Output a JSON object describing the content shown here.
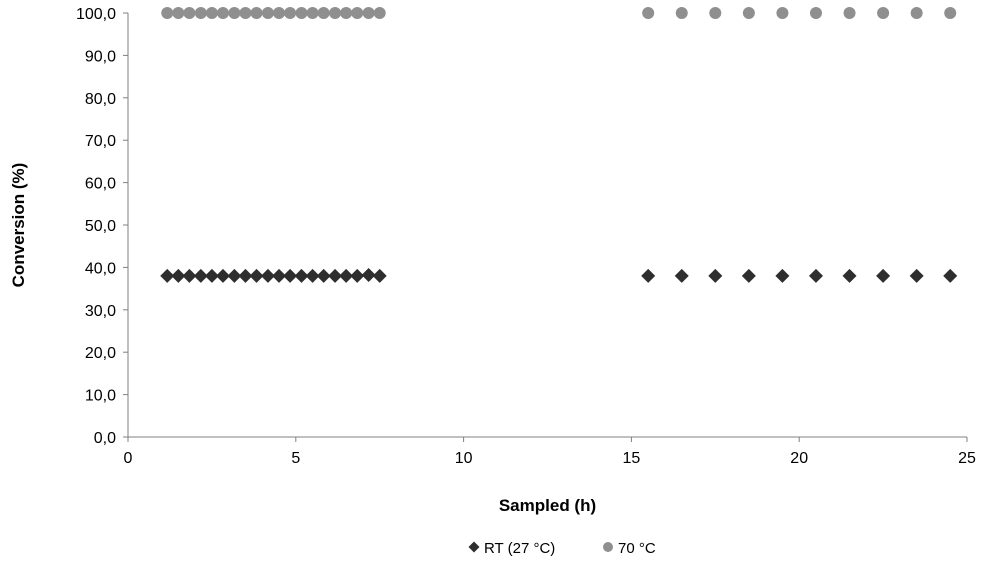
{
  "chart_data": {
    "type": "scatter",
    "title": "",
    "xlabel": "Sampled (h)",
    "ylabel": "Conversion (%)",
    "xlim": [
      0,
      25
    ],
    "ylim": [
      0,
      100
    ],
    "x_ticks": [
      {
        "value": 0,
        "label": "0"
      },
      {
        "value": 5,
        "label": "5"
      },
      {
        "value": 10,
        "label": "10"
      },
      {
        "value": 15,
        "label": "15"
      },
      {
        "value": 20,
        "label": "20"
      },
      {
        "value": 25,
        "label": "25"
      }
    ],
    "y_ticks": [
      {
        "value": 0,
        "label": "0,0"
      },
      {
        "value": 10,
        "label": "10,0"
      },
      {
        "value": 20,
        "label": "20,0"
      },
      {
        "value": 30,
        "label": "30,0"
      },
      {
        "value": 40,
        "label": "40,0"
      },
      {
        "value": 50,
        "label": "50,0"
      },
      {
        "value": 60,
        "label": "60,0"
      },
      {
        "value": 70,
        "label": "70,0"
      },
      {
        "value": 80,
        "label": "80,0"
      },
      {
        "value": 90,
        "label": "90,0"
      },
      {
        "value": 100,
        "label": "100,0"
      }
    ],
    "grid": false,
    "legend_position": "bottom",
    "series": [
      {
        "name": "RT (27 °C)",
        "marker": "diamond",
        "color": "#2e2e2e",
        "points": [
          {
            "x": 1.17,
            "y": 38
          },
          {
            "x": 1.5,
            "y": 38
          },
          {
            "x": 1.83,
            "y": 38
          },
          {
            "x": 2.17,
            "y": 38
          },
          {
            "x": 2.5,
            "y": 38
          },
          {
            "x": 2.83,
            "y": 38
          },
          {
            "x": 3.17,
            "y": 38
          },
          {
            "x": 3.5,
            "y": 38
          },
          {
            "x": 3.83,
            "y": 38
          },
          {
            "x": 4.17,
            "y": 38
          },
          {
            "x": 4.5,
            "y": 38
          },
          {
            "x": 4.83,
            "y": 38
          },
          {
            "x": 5.17,
            "y": 38
          },
          {
            "x": 5.5,
            "y": 38
          },
          {
            "x": 5.83,
            "y": 38
          },
          {
            "x": 6.17,
            "y": 38
          },
          {
            "x": 6.5,
            "y": 38
          },
          {
            "x": 6.83,
            "y": 38
          },
          {
            "x": 7.17,
            "y": 38.2
          },
          {
            "x": 7.5,
            "y": 38
          },
          {
            "x": 15.5,
            "y": 38
          },
          {
            "x": 16.5,
            "y": 38
          },
          {
            "x": 17.5,
            "y": 38
          },
          {
            "x": 18.5,
            "y": 38
          },
          {
            "x": 19.5,
            "y": 38
          },
          {
            "x": 20.5,
            "y": 38
          },
          {
            "x": 21.5,
            "y": 38
          },
          {
            "x": 22.5,
            "y": 38
          },
          {
            "x": 23.5,
            "y": 38
          },
          {
            "x": 24.5,
            "y": 38
          }
        ]
      },
      {
        "name": "70 °C",
        "marker": "circle",
        "color": "#8f8f8f",
        "points": [
          {
            "x": 1.17,
            "y": 100
          },
          {
            "x": 1.5,
            "y": 100
          },
          {
            "x": 1.83,
            "y": 100
          },
          {
            "x": 2.17,
            "y": 100
          },
          {
            "x": 2.5,
            "y": 100
          },
          {
            "x": 2.83,
            "y": 100
          },
          {
            "x": 3.17,
            "y": 100
          },
          {
            "x": 3.5,
            "y": 100
          },
          {
            "x": 3.83,
            "y": 100
          },
          {
            "x": 4.17,
            "y": 100
          },
          {
            "x": 4.5,
            "y": 100
          },
          {
            "x": 4.83,
            "y": 100
          },
          {
            "x": 5.17,
            "y": 100
          },
          {
            "x": 5.5,
            "y": 100
          },
          {
            "x": 5.83,
            "y": 100
          },
          {
            "x": 6.17,
            "y": 100
          },
          {
            "x": 6.5,
            "y": 100
          },
          {
            "x": 6.83,
            "y": 100
          },
          {
            "x": 7.17,
            "y": 100
          },
          {
            "x": 7.5,
            "y": 100
          },
          {
            "x": 15.5,
            "y": 100
          },
          {
            "x": 16.5,
            "y": 100
          },
          {
            "x": 17.5,
            "y": 100
          },
          {
            "x": 18.5,
            "y": 100
          },
          {
            "x": 19.5,
            "y": 100
          },
          {
            "x": 20.5,
            "y": 100
          },
          {
            "x": 21.5,
            "y": 100
          },
          {
            "x": 22.5,
            "y": 100
          },
          {
            "x": 23.5,
            "y": 100
          },
          {
            "x": 24.5,
            "y": 100
          }
        ]
      }
    ]
  }
}
